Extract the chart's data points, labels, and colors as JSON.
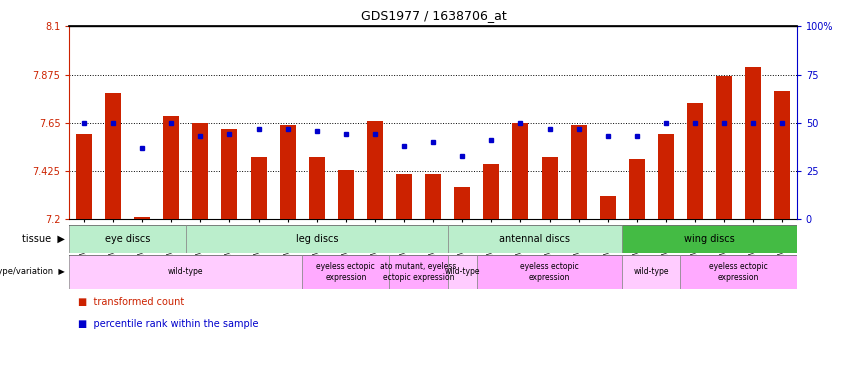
{
  "title": "GDS1977 / 1638706_at",
  "samples": [
    "GSM91570",
    "GSM91585",
    "GSM91609",
    "GSM91616",
    "GSM91617",
    "GSM91618",
    "GSM91619",
    "GSM91478",
    "GSM91479",
    "GSM91480",
    "GSM91472",
    "GSM91473",
    "GSM91474",
    "GSM91484",
    "GSM91491",
    "GSM91515",
    "GSM91475",
    "GSM91476",
    "GSM91477",
    "GSM91620",
    "GSM91621",
    "GSM91622",
    "GSM91481",
    "GSM91482",
    "GSM91483"
  ],
  "bar_values": [
    7.6,
    7.79,
    7.21,
    7.68,
    7.65,
    7.62,
    7.49,
    7.64,
    7.49,
    7.43,
    7.66,
    7.41,
    7.41,
    7.35,
    7.46,
    7.65,
    7.49,
    7.64,
    7.31,
    7.48,
    7.6,
    7.74,
    7.87,
    7.91,
    7.8
  ],
  "percentile_values": [
    50,
    50,
    37,
    50,
    43,
    44,
    47,
    47,
    46,
    44,
    44,
    38,
    40,
    33,
    41,
    50,
    47,
    47,
    43,
    43,
    50,
    50,
    50,
    50,
    50
  ],
  "ylim_left": [
    7.2,
    8.1
  ],
  "ylim_right": [
    0,
    100
  ],
  "yticks_left": [
    7.2,
    7.425,
    7.65,
    7.875,
    8.1
  ],
  "ytick_labels_left": [
    "7.2",
    "7.425",
    "7.65",
    "7.875",
    "8.1"
  ],
  "yticks_right": [
    0,
    25,
    50,
    75,
    100
  ],
  "ytick_labels_right": [
    "0",
    "25",
    "50",
    "75",
    "100%"
  ],
  "bar_color": "#cc2200",
  "dot_color": "#0000cc",
  "hline_values": [
    7.425,
    7.65,
    7.875
  ],
  "tissue_groups": [
    {
      "label": "eye discs",
      "start": 0,
      "end": 3,
      "color": "#bbeecc"
    },
    {
      "label": "leg discs",
      "start": 4,
      "end": 12,
      "color": "#bbeecc"
    },
    {
      "label": "antennal discs",
      "start": 13,
      "end": 18,
      "color": "#bbeecc"
    },
    {
      "label": "wing discs",
      "start": 19,
      "end": 24,
      "color": "#44bb44"
    }
  ],
  "genotype_groups": [
    {
      "label": "wild-type",
      "start": 0,
      "end": 7,
      "color": "#ffccff"
    },
    {
      "label": "eyeless ectopic\nexpression",
      "start": 8,
      "end": 10,
      "color": "#ffaaff"
    },
    {
      "label": "ato mutant, eyeless\nectopic expression",
      "start": 11,
      "end": 12,
      "color": "#ffaaff"
    },
    {
      "label": "wild-type",
      "start": 13,
      "end": 13,
      "color": "#ffccff"
    },
    {
      "label": "eyeless ectopic\nexpression",
      "start": 14,
      "end": 18,
      "color": "#ffaaff"
    },
    {
      "label": "wild-type",
      "start": 19,
      "end": 20,
      "color": "#ffccff"
    },
    {
      "label": "eyeless ectopic\nexpression",
      "start": 21,
      "end": 24,
      "color": "#ffaaff"
    }
  ],
  "legend": [
    {
      "label": "transformed count",
      "color": "#cc2200"
    },
    {
      "label": "percentile rank within the sample",
      "color": "#0000cc"
    }
  ],
  "fig_width": 8.68,
  "fig_height": 3.75,
  "dpi": 100
}
